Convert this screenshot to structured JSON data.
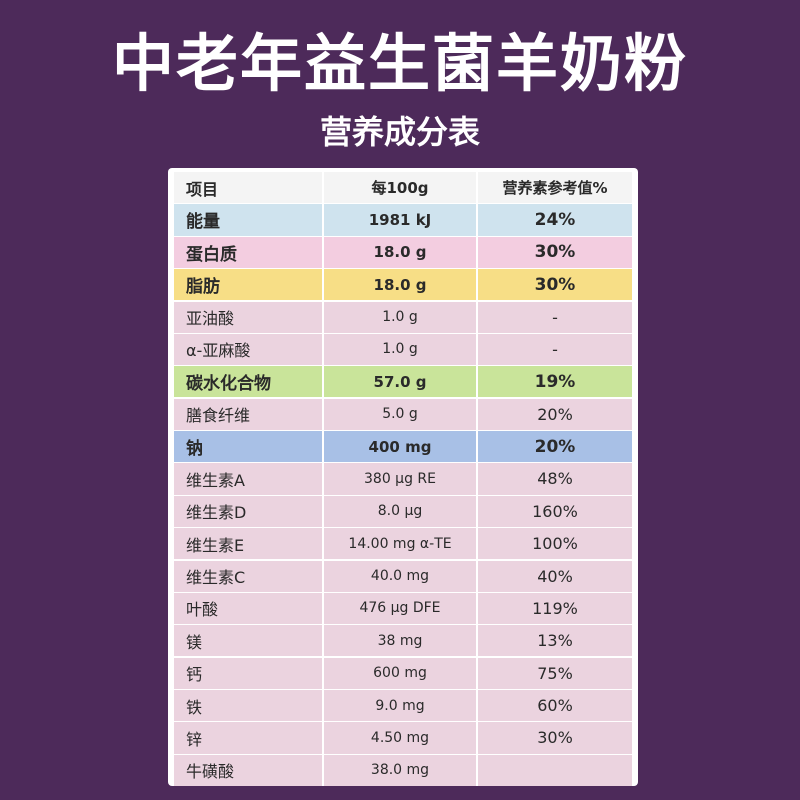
{
  "title": "中老年益生菌羊奶粉",
  "subtitle": "营养成分表",
  "table": {
    "headers": [
      "项目",
      "每100g",
      "营养素参考值%"
    ],
    "rows": [
      {
        "item": "能量",
        "per100g": "1981 kJ",
        "nrv": "24%",
        "color": "#cfe3ee",
        "bold": true
      },
      {
        "item": "蛋白质",
        "per100g": "18.0 g",
        "nrv": "30%",
        "color": "#f3cde0",
        "bold": true
      },
      {
        "item": "脂肪",
        "per100g": "18.0 g",
        "nrv": "30%",
        "color": "#f7de86",
        "bold": true
      },
      {
        "item": "亚油酸",
        "per100g": "1.0 g",
        "nrv": "-",
        "color": "#ebd3df",
        "bold": false
      },
      {
        "item": "α-亚麻酸",
        "per100g": "1.0 g",
        "nrv": "-",
        "color": "#ebd3df",
        "bold": false
      },
      {
        "item": "碳水化合物",
        "per100g": "57.0 g",
        "nrv": "19%",
        "color": "#c9e49a",
        "bold": true
      },
      {
        "item": "膳食纤维",
        "per100g": "5.0 g",
        "nrv": "20%",
        "color": "#ebd3df",
        "bold": false
      },
      {
        "item": "钠",
        "per100g": "400 mg",
        "nrv": "20%",
        "color": "#a8c0e6",
        "bold": true
      },
      {
        "item": "维生素A",
        "per100g": "380 μg RE",
        "nrv": "48%",
        "color": "#ebd3df",
        "bold": false
      },
      {
        "item": "维生素D",
        "per100g": "8.0 μg",
        "nrv": "160%",
        "color": "#ebd3df",
        "bold": false
      },
      {
        "item": "维生素E",
        "per100g": "14.00 mg α-TE",
        "nrv": "100%",
        "color": "#ebd3df",
        "bold": false
      },
      {
        "item": "维生素C",
        "per100g": "40.0 mg",
        "nrv": "40%",
        "color": "#ebd3df",
        "bold": false
      },
      {
        "item": "叶酸",
        "per100g": "476 μg DFE",
        "nrv": "119%",
        "color": "#ebd3df",
        "bold": false
      },
      {
        "item": "镁",
        "per100g": "38 mg",
        "nrv": "13%",
        "color": "#ebd3df",
        "bold": false
      },
      {
        "item": "钙",
        "per100g": "600 mg",
        "nrv": "75%",
        "color": "#ebd3df",
        "bold": false
      },
      {
        "item": "铁",
        "per100g": "9.0 mg",
        "nrv": "60%",
        "color": "#ebd3df",
        "bold": false
      },
      {
        "item": "锌",
        "per100g": "4.50 mg",
        "nrv": "30%",
        "color": "#ebd3df",
        "bold": false
      },
      {
        "item": "牛磺酸",
        "per100g": "38.0 mg",
        "nrv": "",
        "color": "#ebd3df",
        "bold": false
      }
    ]
  }
}
